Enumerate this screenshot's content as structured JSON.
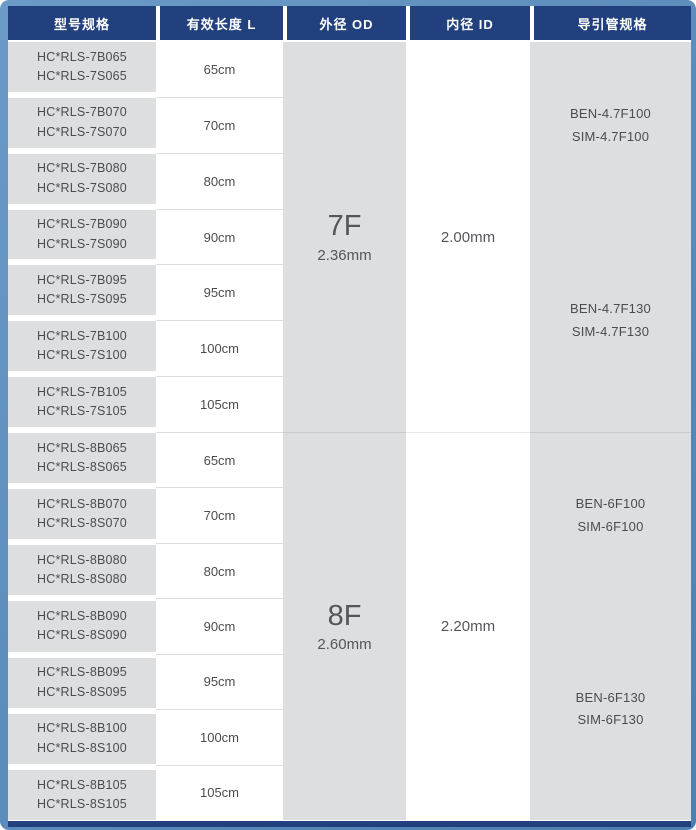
{
  "colors": {
    "frame_blue": "#5789bb",
    "header_navy": "#21407d",
    "cell_gray": "#dcdee0",
    "text_dark": "#4b4c4e"
  },
  "table": {
    "headers": [
      "型号规格",
      "有效长度 L",
      "外径 OD",
      "内径 ID",
      "导引管规格"
    ],
    "sections": [
      {
        "od": {
          "size": "7F",
          "diameter": "2.36mm"
        },
        "id": "2.00mm",
        "rows": [
          {
            "model_b": "HC*RLS-7B065",
            "model_s": "HC*RLS-7S065",
            "length": "65cm"
          },
          {
            "model_b": "HC*RLS-7B070",
            "model_s": "HC*RLS-7S070",
            "length": "70cm"
          },
          {
            "model_b": "HC*RLS-7B080",
            "model_s": "HC*RLS-7S080",
            "length": "80cm"
          },
          {
            "model_b": "HC*RLS-7B090",
            "model_s": "HC*RLS-7S090",
            "length": "90cm"
          },
          {
            "model_b": "HC*RLS-7B095",
            "model_s": "HC*RLS-7S095",
            "length": "95cm"
          },
          {
            "model_b": "HC*RLS-7B100",
            "model_s": "HC*RLS-7S100",
            "length": "100cm"
          },
          {
            "model_b": "HC*RLS-7B105",
            "model_s": "HC*RLS-7S105",
            "length": "105cm"
          }
        ],
        "guides": [
          {
            "ben": "BEN-4.7F100",
            "sim": "SIM-4.7F100"
          },
          {
            "ben": "BEN-4.7F130",
            "sim": "SIM-4.7F130"
          }
        ]
      },
      {
        "od": {
          "size": "8F",
          "diameter": "2.60mm"
        },
        "id": "2.20mm",
        "rows": [
          {
            "model_b": "HC*RLS-8B065",
            "model_s": "HC*RLS-8S065",
            "length": "65cm"
          },
          {
            "model_b": "HC*RLS-8B070",
            "model_s": "HC*RLS-8S070",
            "length": "70cm"
          },
          {
            "model_b": "HC*RLS-8B080",
            "model_s": "HC*RLS-8S080",
            "length": "80cm"
          },
          {
            "model_b": "HC*RLS-8B090",
            "model_s": "HC*RLS-8S090",
            "length": "90cm"
          },
          {
            "model_b": "HC*RLS-8B095",
            "model_s": "HC*RLS-8S095",
            "length": "95cm"
          },
          {
            "model_b": "HC*RLS-8B100",
            "model_s": "HC*RLS-8S100",
            "length": "100cm"
          },
          {
            "model_b": "HC*RLS-8B105",
            "model_s": "HC*RLS-8S105",
            "length": "105cm"
          }
        ],
        "guides": [
          {
            "ben": "BEN-6F100",
            "sim": "SIM-6F100"
          },
          {
            "ben": "BEN-6F130",
            "sim": "SIM-6F130"
          }
        ]
      }
    ]
  }
}
